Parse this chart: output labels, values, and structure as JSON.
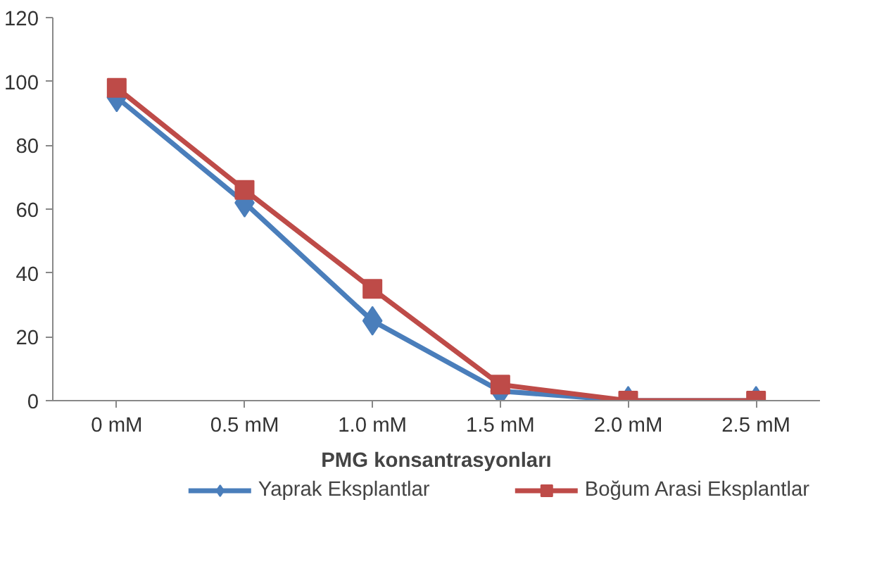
{
  "chart_data": {
    "type": "line",
    "xlabel": "PMG konsantrasyonları",
    "categories": [
      "0 mM",
      "0.5 mM",
      "1.0 mM",
      "1.5 mM",
      "2.0 mM",
      "2.5 mM"
    ],
    "series": [
      {
        "name": "Yaprak Eksplantlar",
        "color": "#4a7ebb",
        "marker": "diamond",
        "values": [
          95,
          62,
          25,
          3,
          0,
          0
        ]
      },
      {
        "name": "Boğum Arasi Eksplantlar",
        "color": "#be4b48",
        "marker": "square",
        "values": [
          98,
          66,
          35,
          5,
          0,
          0
        ]
      }
    ],
    "ylim": [
      0,
      120
    ],
    "yticks": [
      0,
      20,
      40,
      60,
      80,
      100,
      120
    ],
    "grid": false,
    "legend": "bottom",
    "line_style": "solid"
  }
}
